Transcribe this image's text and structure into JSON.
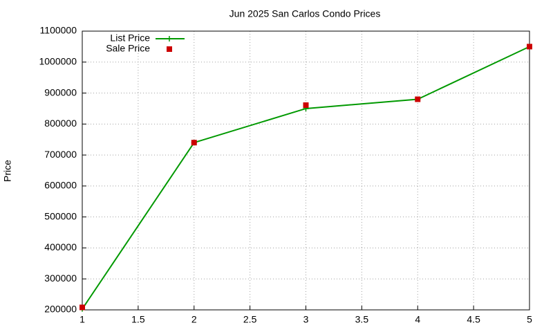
{
  "chart_data": {
    "type": "line",
    "title": "Jun 2025 San Carlos Condo Prices",
    "y_label": "Price",
    "x": [
      1,
      2,
      3,
      4,
      5
    ],
    "series": [
      {
        "name": "List Price",
        "color": "#009900",
        "mode": "linespoints",
        "values": [
          203000,
          740000,
          850000,
          880000,
          1050000
        ]
      },
      {
        "name": "Sale Price",
        "color": "#cc0000",
        "mode": "points",
        "values": [
          208000,
          740000,
          861000,
          880000,
          1050000
        ]
      }
    ],
    "xlim": [
      1,
      5
    ],
    "xticks": [
      1,
      1.5,
      2,
      2.5,
      3,
      3.5,
      4,
      4.5,
      5
    ],
    "ylim": [
      200000,
      1100000
    ],
    "yticks": [
      200000,
      300000,
      400000,
      500000,
      600000,
      700000,
      800000,
      900000,
      1000000,
      1100000
    ],
    "grid": true,
    "legend": "top-left"
  }
}
